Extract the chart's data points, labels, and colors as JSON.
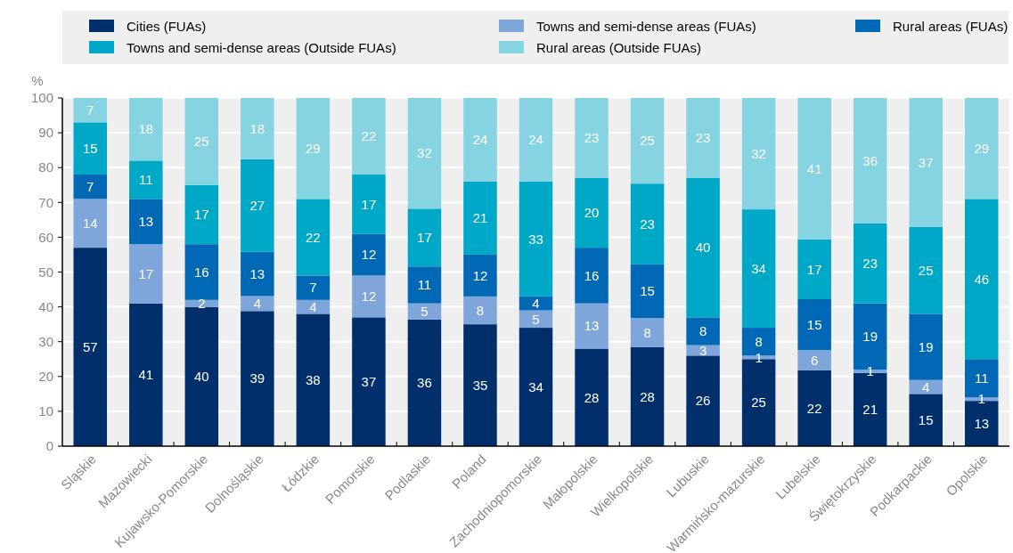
{
  "chart_data": {
    "type": "bar",
    "stacked": true,
    "ylabel": "%",
    "categories": [
      "Sląskie",
      "Mazowiecki",
      "Kujawsko-Pomorskie",
      "Dolnośląskie",
      "Łódzkie",
      "Pomorskie",
      "Podlaskie",
      "Poland",
      "Zachodniopomorskie",
      "Małopolskie",
      "Wielkopolskie",
      "Lubuskie",
      "Warmińsko-mazurskie",
      "Lubelskie",
      "Świętokrzyskie",
      "Podkarpackie",
      "Opolskie"
    ],
    "series": [
      {
        "name": "Cities (FUAs)",
        "color": "#002f6c",
        "values": [
          57,
          41,
          40,
          38.8,
          38,
          37,
          36.4,
          35,
          34,
          28,
          28.4,
          26,
          25,
          21.8,
          21,
          15,
          13
        ],
        "value_labels": [
          "57",
          "41",
          "40",
          "39",
          "38",
          "37",
          "36",
          "35",
          "34",
          "28",
          "28",
          "26",
          "25",
          "22",
          "21",
          "15",
          "13"
        ]
      },
      {
        "name": "Towns and semi-dense areas (FUAs)",
        "color": "#7fa6da",
        "values": [
          14,
          17,
          2,
          4.3,
          4,
          12,
          4.6,
          8,
          5,
          13,
          8.4,
          3,
          1,
          5.8,
          1,
          4,
          1
        ],
        "value_labels": [
          "14",
          "17",
          "2",
          "4",
          "4",
          "12",
          "5",
          "8",
          "5",
          "13",
          "8",
          "3",
          "1",
          "6",
          "1",
          "4",
          "1"
        ]
      },
      {
        "name": "Rural areas (FUAs)",
        "color": "#0068b4",
        "values": [
          7,
          13,
          16,
          12.7,
          7,
          12,
          10.6,
          12,
          4,
          16,
          15.4,
          8,
          8,
          14.6,
          19,
          19,
          11
        ],
        "value_labels": [
          "7",
          "13",
          "16",
          "13",
          "7",
          "12",
          "11",
          "12",
          "4",
          "16",
          "15",
          "8",
          "8",
          "15",
          "19",
          "19",
          "11"
        ]
      },
      {
        "name": "Towns and semi-dense areas (Outside FUAs)",
        "color": "#00a8c8",
        "values": [
          15,
          11,
          17,
          26.6,
          22,
          17,
          16.6,
          21,
          33,
          20,
          23.2,
          40,
          34,
          17.2,
          23,
          25,
          46
        ],
        "value_labels": [
          "15",
          "11",
          "17",
          "27",
          "22",
          "17",
          "17",
          "21",
          "33",
          "20",
          "23",
          "40",
          "34",
          "17",
          "23",
          "25",
          "46"
        ]
      },
      {
        "name": "Rural areas (Outside FUAs)",
        "color": "#86d3e2",
        "values": [
          7,
          18,
          25,
          17.6,
          29,
          22,
          31.8,
          24,
          24,
          23,
          24.6,
          23,
          32,
          40.6,
          36,
          37,
          29
        ],
        "value_labels": [
          "7",
          "18",
          "25",
          "18",
          "29",
          "22",
          "32",
          "24",
          "24",
          "23",
          "25",
          "23",
          "32",
          "41",
          "36",
          "37",
          "29"
        ]
      }
    ],
    "ylim": [
      0,
      100
    ],
    "yticks": [
      0,
      10,
      20,
      30,
      40,
      50,
      60,
      70,
      80,
      90,
      100
    ],
    "grid": "y",
    "legend": "top"
  }
}
